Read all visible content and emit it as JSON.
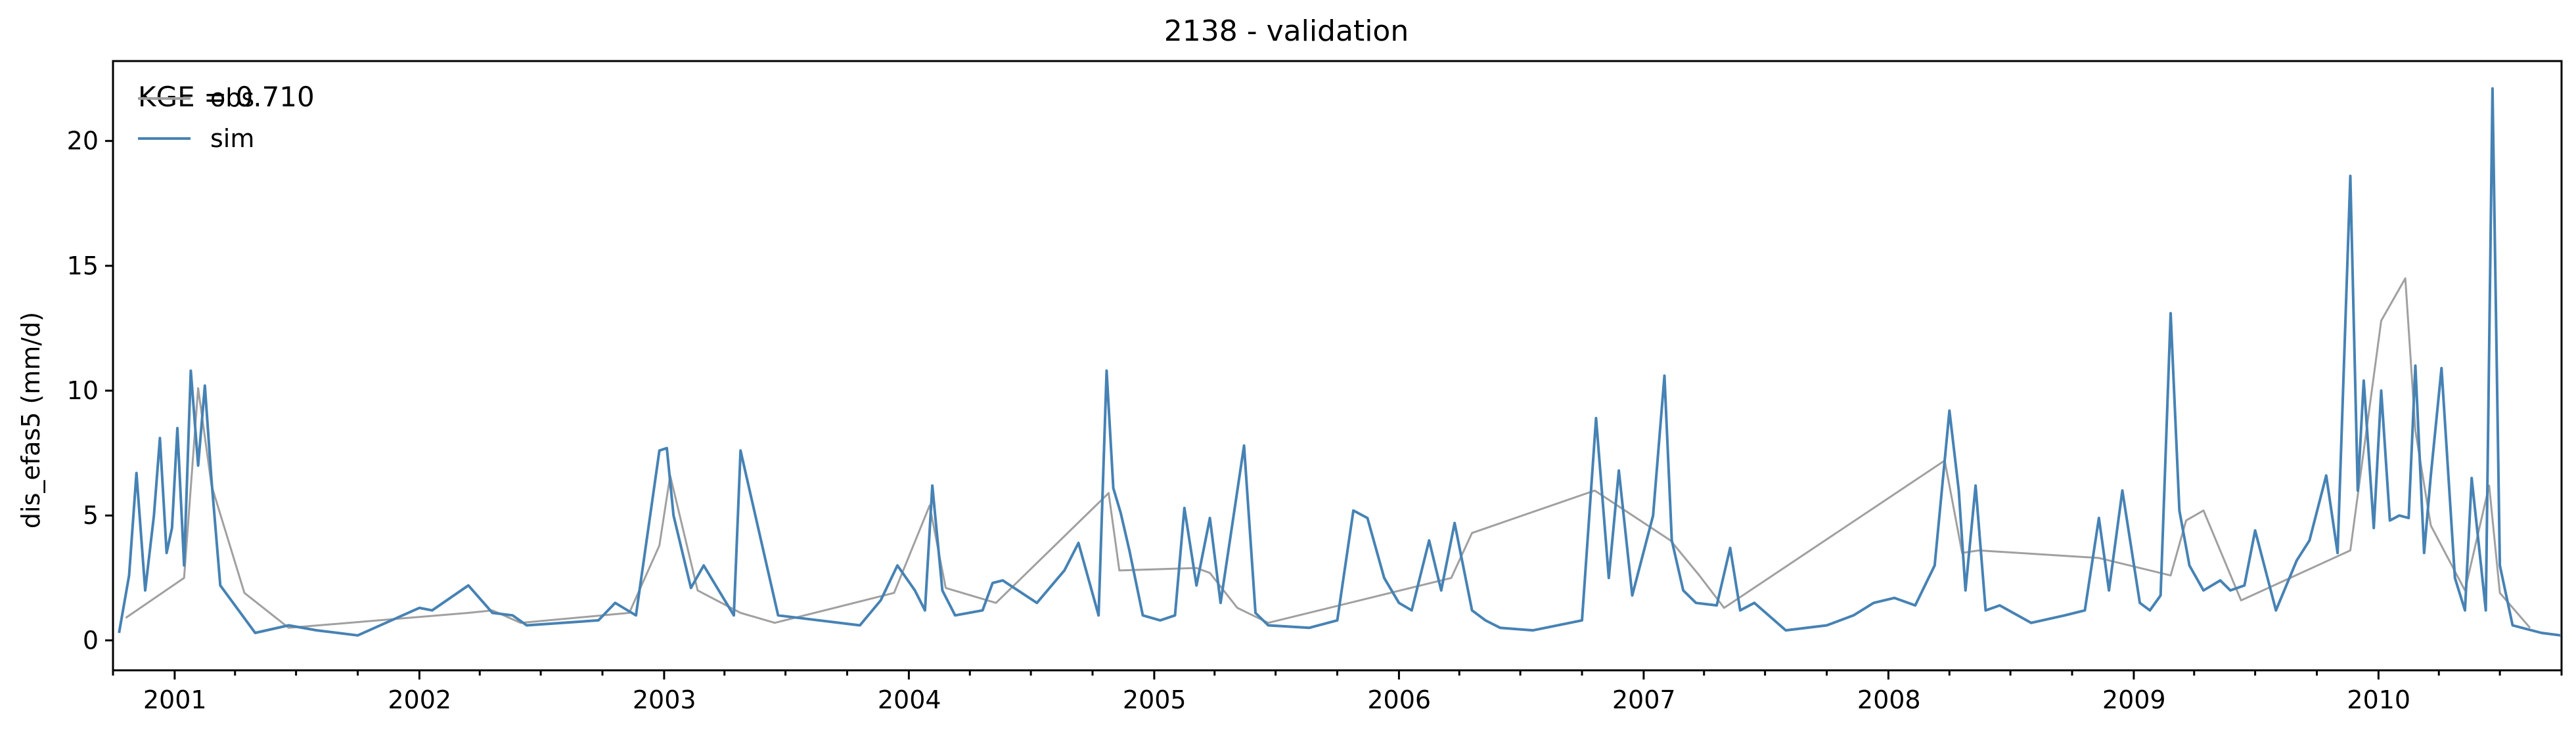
{
  "chart_data": {
    "type": "line",
    "title": "2138 - validation",
    "xlabel": "",
    "ylabel": "dis_efas5 (mm/d)",
    "xlim": [
      "2000-10-01",
      "2010-10-01"
    ],
    "ylim": [
      -1.2,
      23.2
    ],
    "yticks": [
      0,
      5,
      10,
      15,
      20
    ],
    "xticks": [
      "2001",
      "2002",
      "2003",
      "2004",
      "2005",
      "2006",
      "2007",
      "2008",
      "2009",
      "2010"
    ],
    "annotation": "KGE = 0.710",
    "legend": {
      "position": "top-left",
      "entries": [
        "obs",
        "sim"
      ]
    },
    "grid": false,
    "series": [
      {
        "name": "obs",
        "color": "#a0a0a0",
        "x": [
          "2000-10-20",
          "2001-01-15",
          "2001-02-05",
          "2001-02-25",
          "2001-04-15",
          "2001-06-20",
          "2002-03-15",
          "2002-04-20",
          "2002-06-01",
          "2002-11-10",
          "2002-12-25",
          "2003-01-10",
          "2003-02-20",
          "2003-04-25",
          "2003-06-15",
          "2003-12-10",
          "2004-02-01",
          "2004-02-25",
          "2004-05-10",
          "2004-10-25",
          "2004-11-10",
          "2005-03-05",
          "2005-03-25",
          "2005-05-05",
          "2005-06-20",
          "2006-03-20",
          "2006-04-20",
          "2006-10-20",
          "2007-02-10",
          "2007-03-25",
          "2007-05-01",
          "2008-03-25",
          "2008-04-20",
          "2008-05-15",
          "2008-11-10",
          "2009-02-25",
          "2009-03-20",
          "2009-04-15",
          "2009-06-10",
          "2009-11-20",
          "2010-01-05",
          "2010-02-10",
          "2010-02-25",
          "2010-03-20",
          "2010-05-10",
          "2010-06-15",
          "2010-07-01",
          "2010-08-15"
        ],
        "y": [
          0.9,
          2.5,
          10.1,
          6.2,
          1.9,
          0.5,
          1.1,
          1.2,
          0.7,
          1.1,
          3.8,
          6.6,
          2.0,
          1.1,
          0.7,
          1.9,
          5.4,
          2.1,
          1.5,
          5.9,
          2.8,
          2.9,
          2.7,
          1.3,
          0.7,
          2.5,
          4.3,
          6.0,
          4.0,
          2.6,
          1.3,
          7.2,
          3.5,
          3.6,
          3.3,
          2.6,
          4.8,
          5.2,
          1.6,
          3.6,
          12.8,
          14.5,
          8.4,
          4.6,
          2.0,
          6.2,
          1.9,
          0.5
        ]
      },
      {
        "name": "sim",
        "color": "#4682b4",
        "x": [
          "2000-10-10",
          "2000-10-25",
          "2000-11-05",
          "2000-11-18",
          "2000-12-01",
          "2000-12-10",
          "2000-12-20",
          "2000-12-28",
          "2001-01-05",
          "2001-01-15",
          "2001-01-25",
          "2001-02-05",
          "2001-02-15",
          "2001-02-25",
          "2001-03-10",
          "2001-05-01",
          "2001-06-20",
          "2001-08-01",
          "2001-10-01",
          "2002-01-01",
          "2002-01-20",
          "2002-03-15",
          "2002-04-20",
          "2002-05-20",
          "2002-06-10",
          "2002-09-25",
          "2002-10-20",
          "2002-11-20",
          "2002-12-25",
          "2003-01-05",
          "2003-01-15",
          "2003-02-10",
          "2003-03-01",
          "2003-04-15",
          "2003-04-25",
          "2003-06-20",
          "2003-10-20",
          "2003-11-20",
          "2003-12-15",
          "2004-01-10",
          "2004-01-25",
          "2004-02-05",
          "2004-02-20",
          "2004-03-10",
          "2004-04-20",
          "2004-05-05",
          "2004-05-20",
          "2004-07-10",
          "2004-08-20",
          "2004-09-10",
          "2004-10-10",
          "2004-10-22",
          "2004-11-01",
          "2004-11-12",
          "2004-11-25",
          "2004-12-15",
          "2005-01-10",
          "2005-02-01",
          "2005-02-15",
          "2005-03-05",
          "2005-03-25",
          "2005-04-10",
          "2005-05-15",
          "2005-06-01",
          "2005-06-20",
          "2005-08-20",
          "2005-10-01",
          "2005-10-25",
          "2005-11-15",
          "2005-12-10",
          "2006-01-01",
          "2006-01-20",
          "2006-02-15",
          "2006-03-05",
          "2006-03-25",
          "2006-04-20",
          "2006-05-10",
          "2006-06-01",
          "2006-07-20",
          "2006-10-01",
          "2006-10-22",
          "2006-11-10",
          "2006-11-25",
          "2006-12-15",
          "2007-01-15",
          "2007-02-01",
          "2007-02-12",
          "2007-03-01",
          "2007-03-20",
          "2007-04-20",
          "2007-05-10",
          "2007-05-25",
          "2007-06-15",
          "2007-08-01",
          "2007-10-01",
          "2007-11-10",
          "2007-12-10",
          "2008-01-10",
          "2008-02-10",
          "2008-03-10",
          "2008-04-01",
          "2008-04-15",
          "2008-04-25",
          "2008-05-10",
          "2008-05-25",
          "2008-06-15",
          "2008-08-01",
          "2008-09-20",
          "2008-10-20",
          "2008-11-10",
          "2008-11-25",
          "2008-12-15",
          "2009-01-10",
          "2009-01-25",
          "2009-02-10",
          "2009-02-25",
          "2009-03-10",
          "2009-03-25",
          "2009-04-15",
          "2009-05-10",
          "2009-05-25",
          "2009-06-15",
          "2009-07-01",
          "2009-08-01",
          "2009-09-01",
          "2009-09-20",
          "2009-10-15",
          "2009-11-01",
          "2009-11-20",
          "2009-12-01",
          "2009-12-10",
          "2009-12-25",
          "2010-01-05",
          "2010-01-18",
          "2010-02-01",
          "2010-02-15",
          "2010-02-25",
          "2010-03-10",
          "2010-03-20",
          "2010-04-05",
          "2010-04-25",
          "2010-05-10",
          "2010-05-20",
          "2010-06-10",
          "2010-06-20",
          "2010-07-01",
          "2010-07-20",
          "2010-09-01",
          "2010-09-30"
        ],
        "y": [
          0.3,
          2.6,
          6.7,
          2.0,
          5.0,
          8.1,
          3.5,
          4.5,
          8.5,
          3.0,
          10.8,
          7.0,
          10.2,
          6.4,
          2.2,
          0.3,
          0.6,
          0.4,
          0.2,
          1.3,
          1.2,
          2.2,
          1.1,
          1.0,
          0.6,
          0.8,
          1.5,
          1.0,
          7.6,
          7.7,
          5.0,
          2.1,
          3.0,
          1.0,
          7.6,
          1.0,
          0.6,
          1.6,
          3.0,
          2.0,
          1.2,
          6.2,
          2.0,
          1.0,
          1.2,
          2.3,
          2.4,
          1.5,
          2.8,
          3.9,
          1.0,
          10.8,
          6.1,
          5.1,
          3.6,
          1.0,
          0.8,
          1.0,
          5.3,
          2.2,
          4.9,
          1.5,
          7.8,
          1.1,
          0.6,
          0.5,
          0.8,
          5.2,
          4.9,
          2.5,
          1.5,
          1.2,
          4.0,
          2.0,
          4.7,
          1.2,
          0.8,
          0.5,
          0.4,
          0.8,
          8.9,
          2.5,
          6.8,
          1.8,
          5.0,
          10.6,
          4.0,
          2.0,
          1.5,
          1.4,
          3.7,
          1.2,
          1.5,
          0.4,
          0.6,
          1.0,
          1.5,
          1.7,
          1.4,
          3.0,
          9.2,
          6.0,
          2.0,
          6.2,
          1.2,
          1.4,
          0.7,
          1.0,
          1.2,
          4.9,
          2.0,
          6.0,
          1.5,
          1.2,
          1.8,
          13.1,
          5.2,
          3.0,
          2.0,
          2.4,
          2.0,
          2.2,
          4.4,
          1.2,
          3.2,
          4.0,
          6.6,
          3.5,
          18.6,
          6.0,
          10.4,
          4.5,
          10.0,
          4.8,
          5.0,
          4.9,
          11.0,
          3.5,
          6.6,
          10.9,
          2.5,
          1.2,
          6.5,
          1.2,
          22.1,
          3.0,
          0.6,
          0.3,
          0.2
        ]
      }
    ]
  }
}
